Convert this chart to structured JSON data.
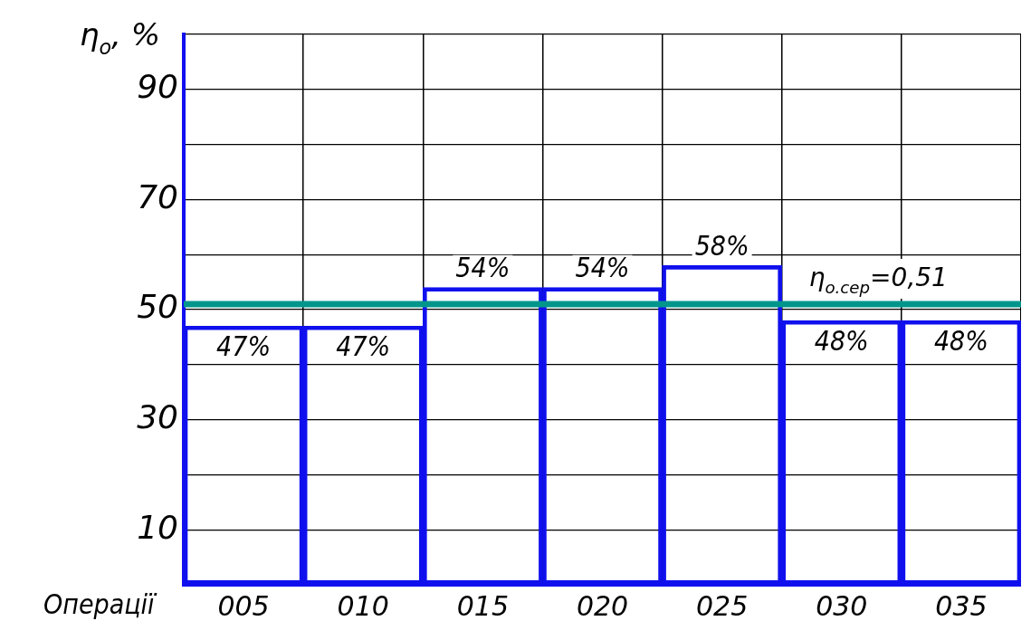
{
  "chart_data": {
    "type": "bar",
    "ylabel": "η$_{o}$, %",
    "xlabel": "Операції",
    "categories": [
      "005",
      "010",
      "015",
      "020",
      "025",
      "030",
      "035"
    ],
    "values": [
      47,
      47,
      54,
      54,
      58,
      48,
      48
    ],
    "value_labels": [
      "47%",
      "47%",
      "54%",
      "54%",
      "58%",
      "48%",
      "48%"
    ],
    "color": "#1010ee",
    "ylim": [
      0,
      100
    ],
    "yticks": [
      10,
      30,
      50,
      70,
      90
    ],
    "grid": true,
    "ref_lines": [
      {
        "axis": "y",
        "value": 51,
        "color": "#00968c"
      }
    ],
    "annotations": [
      "η$_{o.сер}$=0,51"
    ]
  }
}
